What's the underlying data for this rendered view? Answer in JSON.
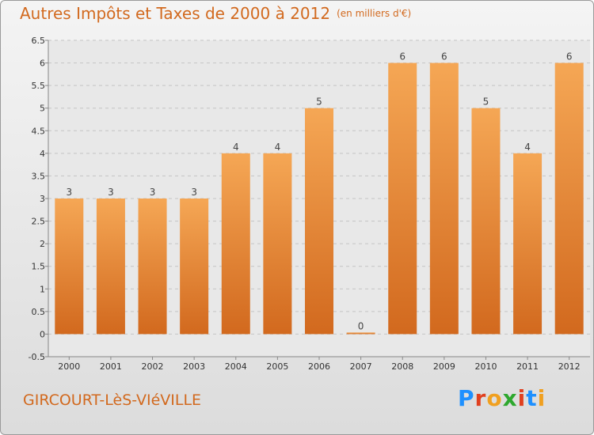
{
  "header": {
    "title": "Autres Impôts et Taxes de 2000 à 2012",
    "unit": "(en milliers d'€)"
  },
  "footer": {
    "commune": "GIRCOURT-LèS-VIéVILLE",
    "brand": "Proxiti"
  },
  "colors": {
    "bar_light": "#f5a755",
    "bar_dark": "#d2691e",
    "title": "#d2691e",
    "brand": [
      "#1e90ff",
      "#e0401f",
      "#f0a020",
      "#2ea82e",
      "#e0401f",
      "#1e90ff",
      "#f0a020"
    ]
  },
  "chart_data": {
    "type": "bar",
    "categories": [
      "2000",
      "2001",
      "2002",
      "2003",
      "2004",
      "2005",
      "2006",
      "2007",
      "2008",
      "2009",
      "2010",
      "2011",
      "2012"
    ],
    "values": [
      3,
      3,
      3,
      3,
      4,
      4,
      5,
      0,
      6,
      6,
      5,
      4,
      6
    ],
    "y_ticks": [
      "-0.5",
      "0",
      "0.5",
      "1",
      "1.5",
      "2",
      "2.5",
      "3",
      "3.5",
      "4",
      "4.5",
      "5",
      "5.5",
      "6",
      "6.5"
    ],
    "ylim": [
      -0.5,
      6.5
    ],
    "grid": true,
    "title": "Autres Impôts et Taxes de 2000 à 2012",
    "xlabel": "",
    "ylabel": ""
  }
}
